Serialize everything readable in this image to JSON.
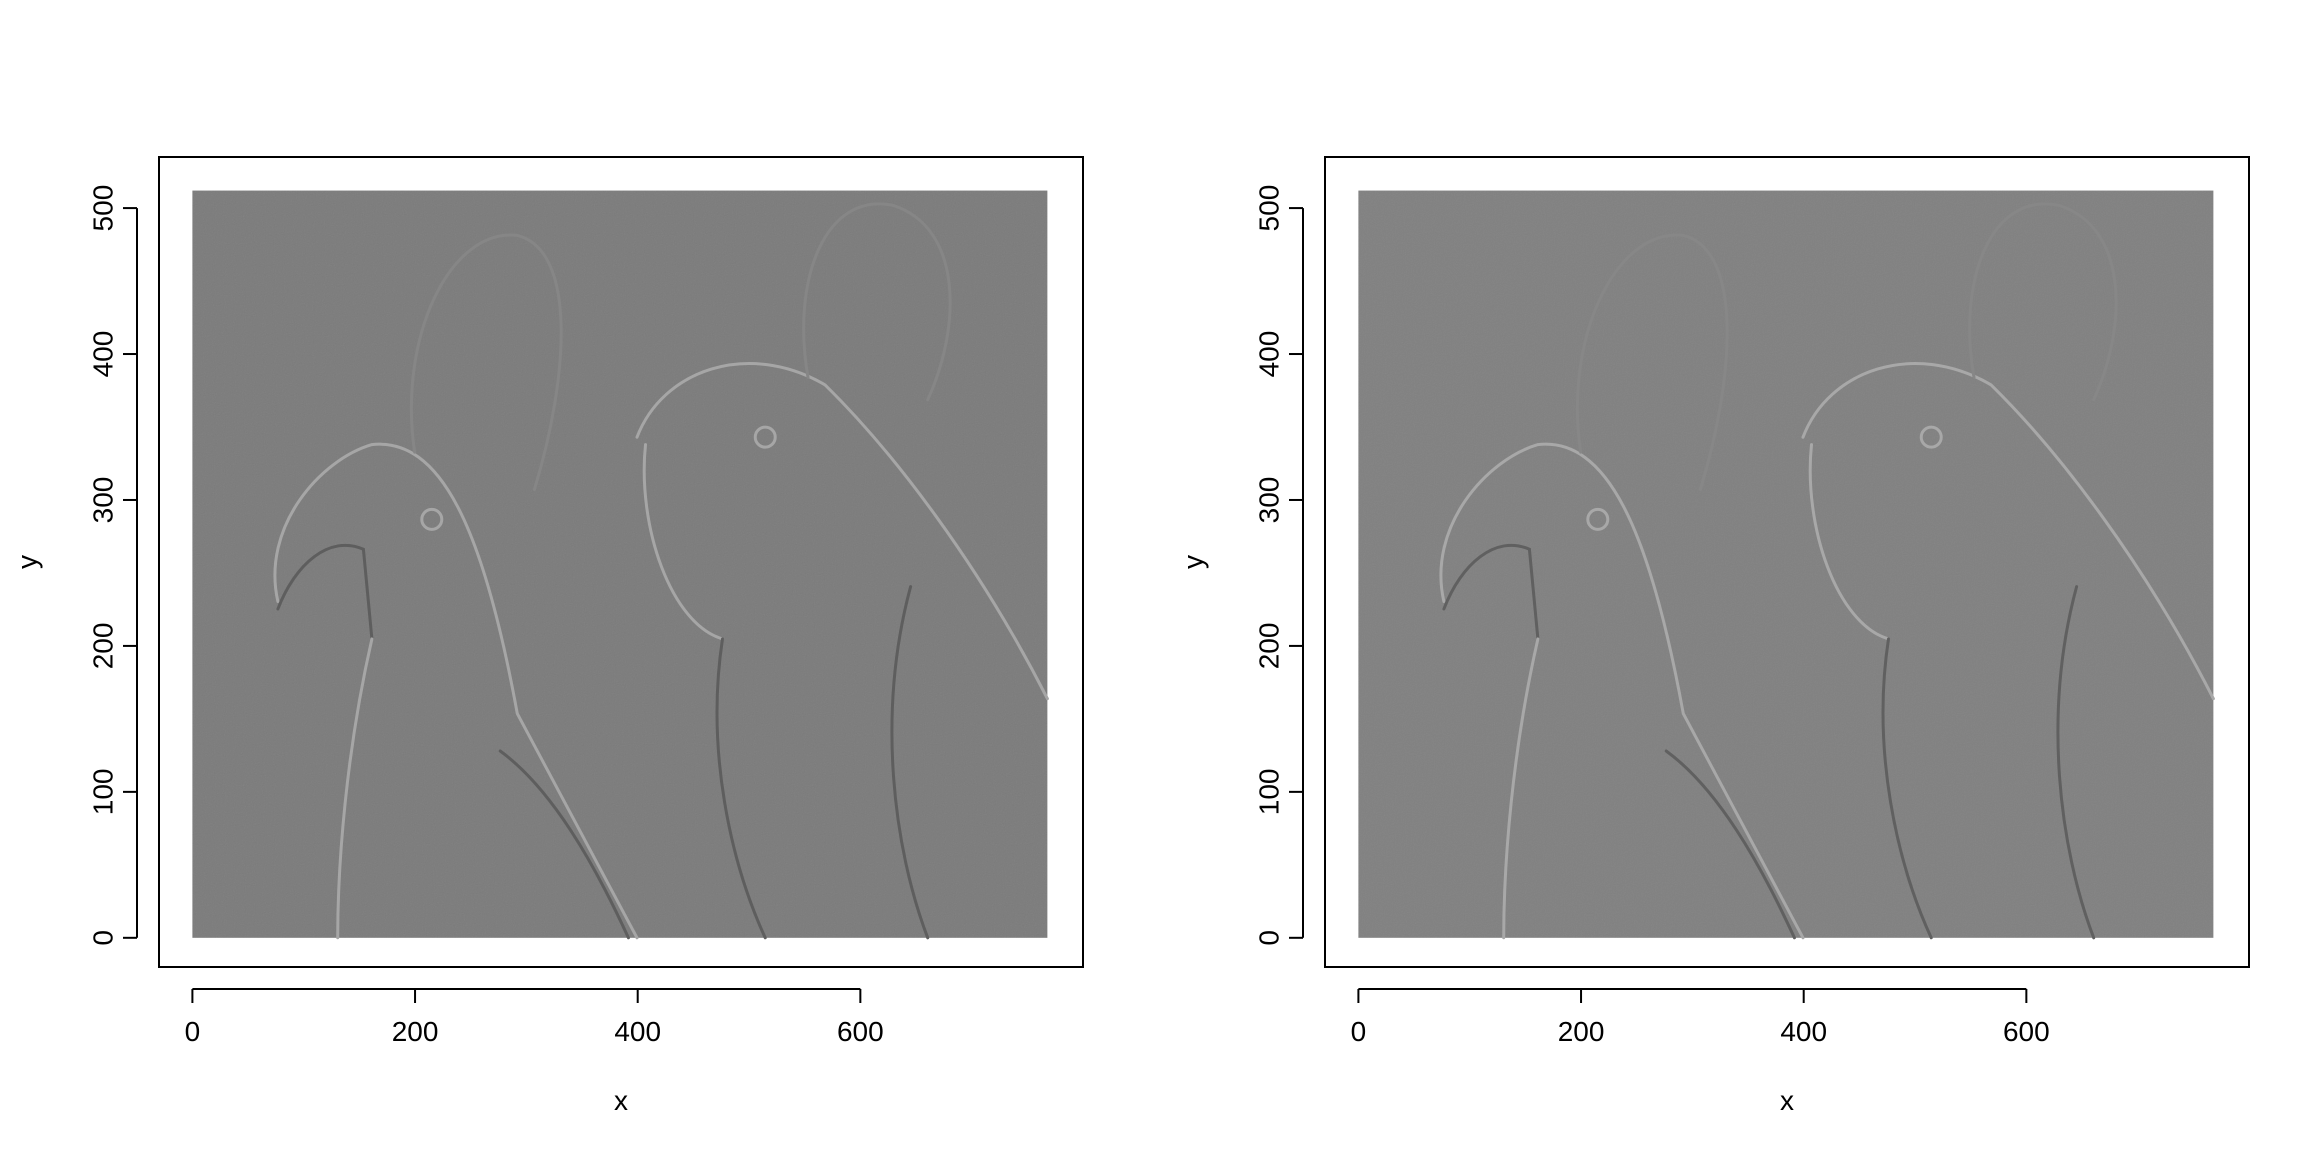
{
  "chart_data": [
    {
      "type": "heatmap",
      "title": "",
      "xlabel": "x",
      "ylabel": "y",
      "xlim": [
        -30,
        800
      ],
      "ylim": [
        -20,
        535
      ],
      "image_extent": {
        "x": [
          0,
          768
        ],
        "y": [
          0,
          512
        ]
      },
      "xticks": [
        0,
        200,
        400,
        600
      ],
      "yticks": [
        0,
        100,
        200,
        300,
        400,
        500
      ],
      "content": "grayscale edge-filtered (x-direction) image of two macaws",
      "fill_color": "#7b7b7b"
    },
    {
      "type": "heatmap",
      "title": "",
      "xlabel": "x",
      "ylabel": "y",
      "xlim": [
        -30,
        800
      ],
      "ylim": [
        -20,
        535
      ],
      "image_extent": {
        "x": [
          0,
          768
        ],
        "y": [
          0,
          512
        ]
      },
      "xticks": [
        0,
        200,
        400,
        600
      ],
      "yticks": [
        0,
        100,
        200,
        300,
        400,
        500
      ],
      "content": "grayscale edge-filtered (y-direction) image of two macaws",
      "fill_color": "#808080"
    }
  ]
}
